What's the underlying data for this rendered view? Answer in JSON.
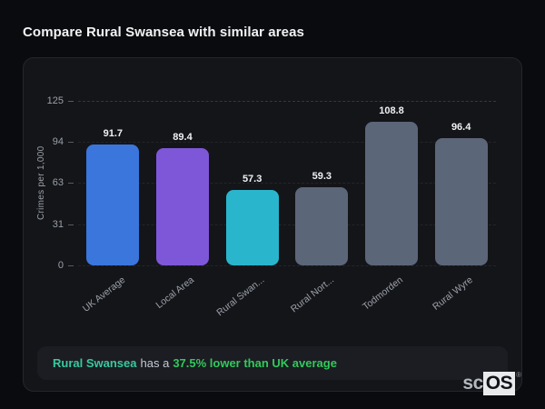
{
  "page": {
    "title": "Compare Rural Swansea with similar areas"
  },
  "chart_data": {
    "type": "bar",
    "title": "",
    "categories": [
      "UK Average",
      "Local Area",
      "Rural Swan...",
      "Rural Nort...",
      "Todmorden",
      "Rural Wyre"
    ],
    "values": [
      91.7,
      89.4,
      57.3,
      59.3,
      108.8,
      96.4
    ],
    "value_labels": [
      "91.7",
      "89.4",
      "57.3",
      "59.3",
      "108.8",
      "96.4"
    ],
    "bar_colors": [
      "#3b76dd",
      "#7e57d8",
      "#29b6cc",
      "#5b6679",
      "#5b6679",
      "#5b6679"
    ],
    "xlabel": "",
    "ylabel": "Crimes per 1,000",
    "yticks": [
      0,
      31,
      63,
      94,
      125
    ],
    "ylim": [
      0,
      125
    ],
    "grid": "horizontal-dashed",
    "legend": "none"
  },
  "note": {
    "highlight": "Rural Swansea",
    "connector": "has a",
    "stat": "37.5% lower than UK average",
    "highlight_color": "#38c9a0",
    "stat_color": "#32c95c"
  },
  "branding": {
    "prefix": "sc",
    "suffix": "OS",
    "registered_mark": "®"
  }
}
